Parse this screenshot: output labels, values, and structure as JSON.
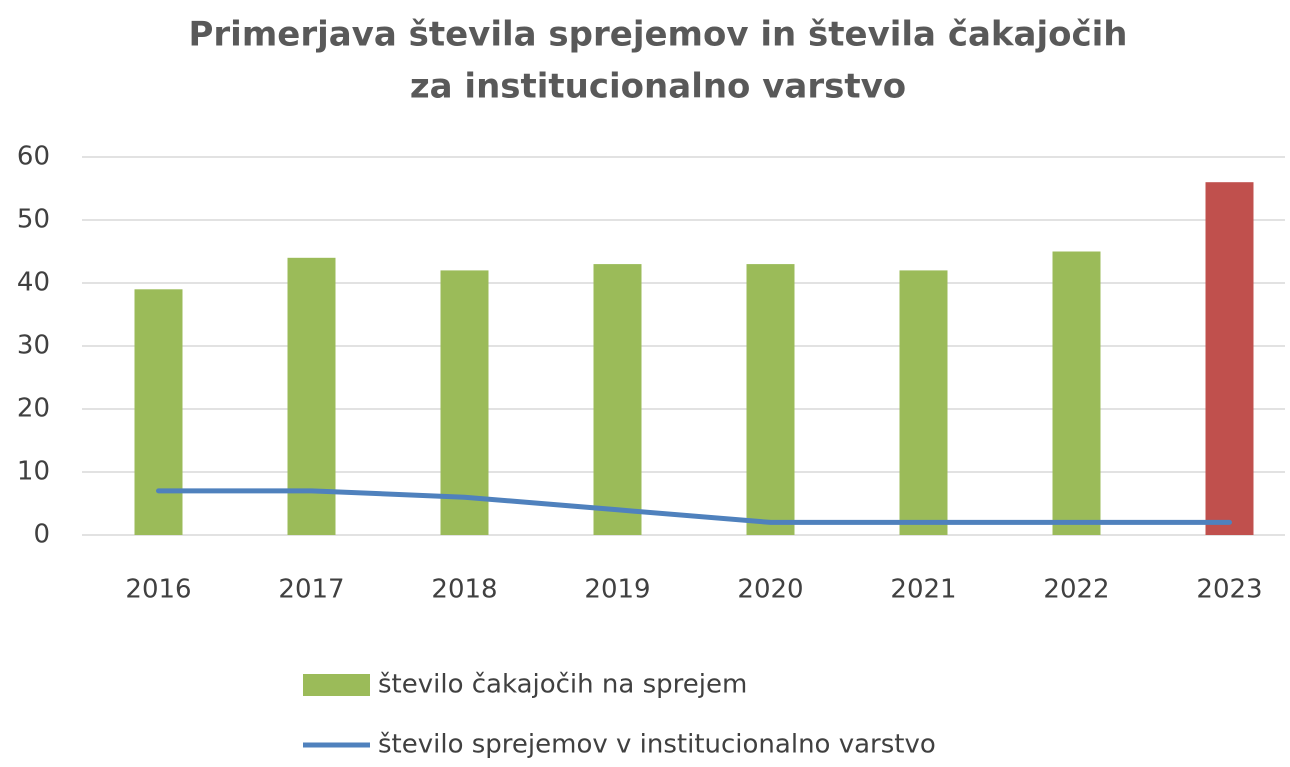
{
  "chart_data": {
    "type": "bar",
    "title": [
      "Primerjava števila sprejemov in števila čakajočih",
      "za institucionalno varstvo"
    ],
    "categories": [
      "2016",
      "2017",
      "2018",
      "2019",
      "2020",
      "2021",
      "2022",
      "2023"
    ],
    "series": [
      {
        "name": "število čakajočih na sprejem",
        "type": "bar",
        "color": "#9bbb59",
        "colors": [
          "#9bbb59",
          "#9bbb59",
          "#9bbb59",
          "#9bbb59",
          "#9bbb59",
          "#9bbb59",
          "#9bbb59",
          "#c0504d"
        ],
        "values": [
          39,
          44,
          42,
          43,
          43,
          42,
          45,
          56
        ]
      },
      {
        "name": "število sprejemov v institucionalno varstvo",
        "type": "line",
        "color": "#4f81bd",
        "values": [
          7,
          7,
          6,
          4,
          2,
          2,
          2,
          2
        ]
      }
    ],
    "ylim": [
      0,
      60
    ],
    "yticks": [
      0,
      10,
      20,
      30,
      40,
      50,
      60
    ],
    "grid": true
  }
}
